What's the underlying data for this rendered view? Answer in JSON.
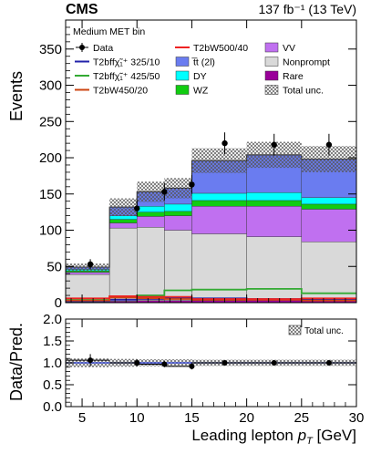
{
  "header": {
    "experiment": "CMS",
    "lumi": "137 fb⁻¹ (13 TeV)"
  },
  "chart_data": [
    {
      "type": "stacked-histogram",
      "title": "",
      "xlabel": "Leading lepton p_T [GeV]",
      "ylabel": "Events",
      "annotation": "Medium MET bin",
      "xlim": [
        3.5,
        30
      ],
      "ylim": [
        0,
        390
      ],
      "bin_edges": [
        3.5,
        7.5,
        10,
        12.5,
        15,
        20,
        25,
        30
      ],
      "x_ticks": [
        5,
        10,
        15,
        20,
        25,
        30
      ],
      "y_ticks": [
        0,
        50,
        100,
        150,
        200,
        250,
        300,
        350
      ],
      "colors": {
        "Nonprompt": "#d9d9d9",
        "VV": "#c070f0",
        "WZ": "#11cc11",
        "DY": "#00ffff",
        "ttbar": "#6a7cf0",
        "Rare": "#990099",
        "data": "#000000",
        "signal_T2bff_325_10": "#2222aa",
        "signal_T2bff_425_50": "#33aa33",
        "signal_T2bW_450_20": "#cc4411",
        "signal_T2bW_500_40": "#ee2222"
      },
      "legend": {
        "placement": "top",
        "entries": [
          {
            "key": "data",
            "label": "Data",
            "style": "marker"
          },
          {
            "key": "signal_T2bff_325_10",
            "label": "T2bffχ̃₁⁺ 325/10",
            "style": "line"
          },
          {
            "key": "signal_T2bff_425_50",
            "label": "T2bffχ̃₁⁺ 425/50",
            "style": "line"
          },
          {
            "key": "signal_T2bW_450_20",
            "label": "T2bW450/20",
            "style": "line"
          },
          {
            "key": "signal_T2bW_500_40",
            "label": "T2bW500/40",
            "style": "line"
          },
          {
            "key": "ttbar",
            "label": "t̅t (2l)",
            "style": "box"
          },
          {
            "key": "DY",
            "label": "DY",
            "style": "box"
          },
          {
            "key": "WZ",
            "label": "WZ",
            "style": "box"
          },
          {
            "key": "VV",
            "label": "VV",
            "style": "box"
          },
          {
            "key": "Nonprompt",
            "label": "Nonprompt",
            "style": "box"
          },
          {
            "key": "Rare",
            "label": "Rare",
            "style": "box"
          },
          {
            "key": "total_unc",
            "label": "Total unc.",
            "style": "hatch"
          }
        ]
      },
      "stack": [
        {
          "key": "Rare",
          "values": [
            1,
            2,
            3,
            3,
            3,
            4,
            6
          ]
        },
        {
          "key": "Nonprompt",
          "values": [
            38,
            101,
            101,
            97,
            92,
            87,
            78
          ]
        },
        {
          "key": "VV",
          "values": [
            3,
            7,
            15,
            20,
            38,
            42,
            45
          ]
        },
        {
          "key": "WZ",
          "values": [
            2,
            5,
            6,
            6,
            8,
            8,
            7
          ]
        },
        {
          "key": "DY",
          "values": [
            2,
            5,
            8,
            10,
            10,
            11,
            9
          ]
        },
        {
          "key": "ttbar",
          "values": [
            3,
            12,
            20,
            22,
            45,
            52,
            53
          ]
        }
      ],
      "total_unc": [
        5,
        12,
        14,
        14,
        17,
        18,
        18
      ],
      "data": {
        "x": [
          5.75,
          10,
          12.5,
          15,
          18,
          22.5,
          27.5
        ],
        "y": [
          53,
          130,
          153,
          163,
          220,
          218,
          218
        ],
        "err": [
          7,
          11,
          12,
          13,
          15,
          15,
          15
        ]
      },
      "signals": [
        {
          "key": "signal_T2bff_325_10",
          "values": [
            2,
            4,
            5,
            6,
            6,
            5,
            4
          ]
        },
        {
          "key": "signal_T2bff_425_50",
          "values": [
            5,
            9,
            10,
            17,
            18,
            19,
            13
          ]
        },
        {
          "key": "signal_T2bW_450_20",
          "values": [
            3,
            7,
            6,
            5,
            4,
            4,
            3
          ]
        },
        {
          "key": "signal_T2bW_500_40",
          "values": [
            6,
            9,
            8,
            8,
            5,
            5,
            6
          ]
        }
      ]
    },
    {
      "type": "ratio",
      "xlabel": "Leading lepton p_T [GeV]",
      "ylabel": "Data/Pred.",
      "xlim": [
        3.5,
        30
      ],
      "ylim": [
        0,
        2
      ],
      "y_ticks": [
        "0.0",
        "0.5",
        "1.0",
        "1.5",
        "2.0"
      ],
      "x_ticks": [
        5,
        10,
        15,
        20,
        25,
        30
      ],
      "legend": {
        "placement": "top-right",
        "label": "Total unc."
      },
      "ratio": {
        "x": [
          5.75,
          10,
          12.5,
          15,
          18,
          22.5,
          27.5
        ],
        "y": [
          1.06,
          1.0,
          0.97,
          0.92,
          1.0,
          1.0,
          1.0
        ],
        "err": [
          0.14,
          0.08,
          0.07,
          0.07,
          0.06,
          0.06,
          0.06
        ]
      },
      "unc_band": [
        0.1,
        0.09,
        0.08,
        0.08,
        0.07,
        0.07,
        0.07
      ],
      "reference_line": 1.0,
      "reference_color": "#3344dd"
    }
  ]
}
